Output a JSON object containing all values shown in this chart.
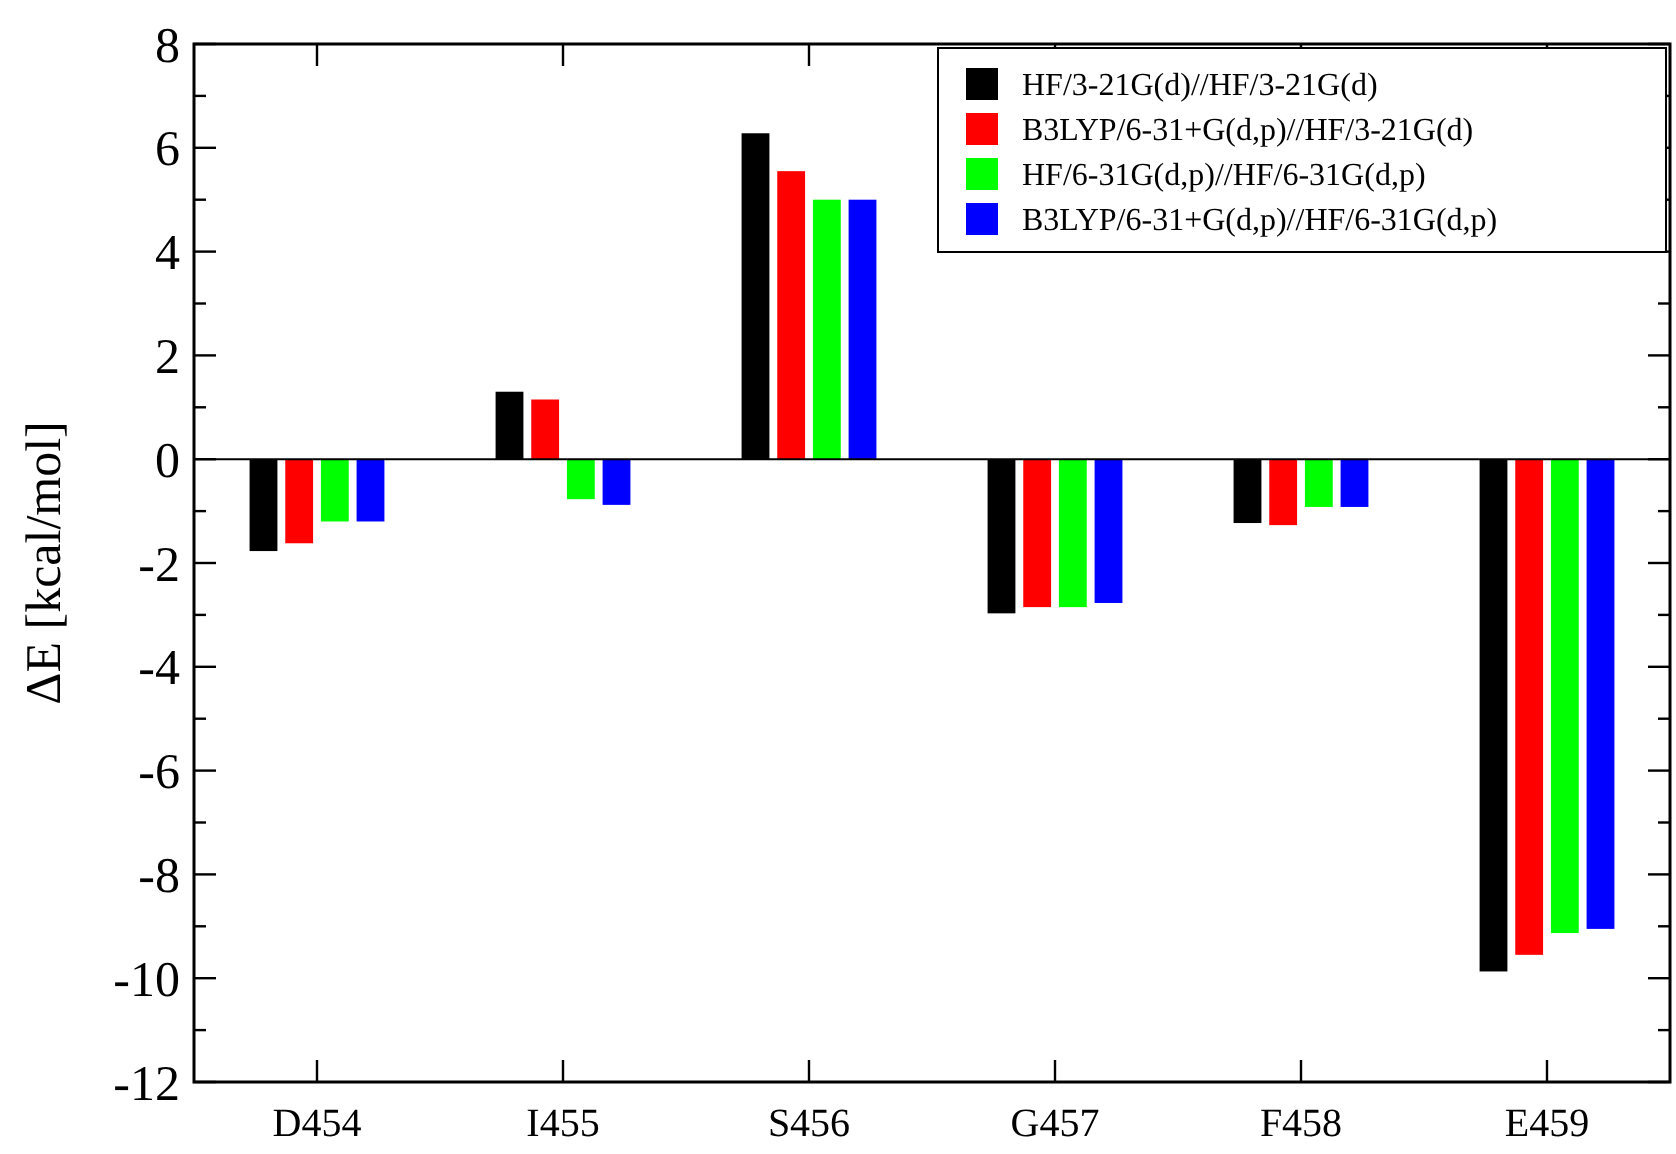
{
  "chart_data": {
    "type": "bar",
    "ylabel": "ΔE [kcal/mol]",
    "categories": [
      "D454",
      "I455",
      "S456",
      "G457",
      "F458",
      "E459"
    ],
    "series": [
      {
        "name": "HF/3-21G(d)//HF/3-21G(d)",
        "color": "#000000",
        "values": [
          -1.77,
          1.3,
          6.28,
          -2.97,
          -1.23,
          -9.87
        ]
      },
      {
        "name": "B3LYP/6-31+G(d,p)//HF/3-21G(d)",
        "color": "#ff0000",
        "values": [
          -1.62,
          1.15,
          5.55,
          -2.85,
          -1.27,
          -9.55
        ]
      },
      {
        "name": "HF/6-31G(d,p)//HF/6-31G(d,p)",
        "color": "#00ff00",
        "values": [
          -1.2,
          -0.77,
          5.0,
          -2.85,
          -0.92,
          -9.13
        ]
      },
      {
        "name": "B3LYP/6-31+G(d,p)//HF/6-31G(d,p)",
        "color": "#0000ff",
        "values": [
          -1.2,
          -0.88,
          5.0,
          -2.77,
          -0.92,
          -9.05
        ]
      }
    ],
    "ylim": [
      -12,
      8
    ],
    "yticks": [
      -12,
      {
        "value": -11,
        "label": null
      },
      -10,
      {
        "value": -9,
        "label": null
      },
      -8,
      {
        "value": -7,
        "label": null
      },
      -6,
      {
        "value": -5,
        "label": null
      },
      -4,
      {
        "value": -3,
        "label": null
      },
      -2,
      {
        "value": -1,
        "label": null
      },
      0,
      {
        "value": 1,
        "label": null
      },
      2,
      {
        "value": 3,
        "label": null
      },
      4,
      {
        "value": 5,
        "label": null
      },
      6,
      {
        "value": 7,
        "label": null
      },
      8
    ],
    "ref_lines": [
      {
        "axis": "y",
        "value": 0,
        "color": "#000000"
      }
    ],
    "legend": "top right",
    "grid": false
  }
}
